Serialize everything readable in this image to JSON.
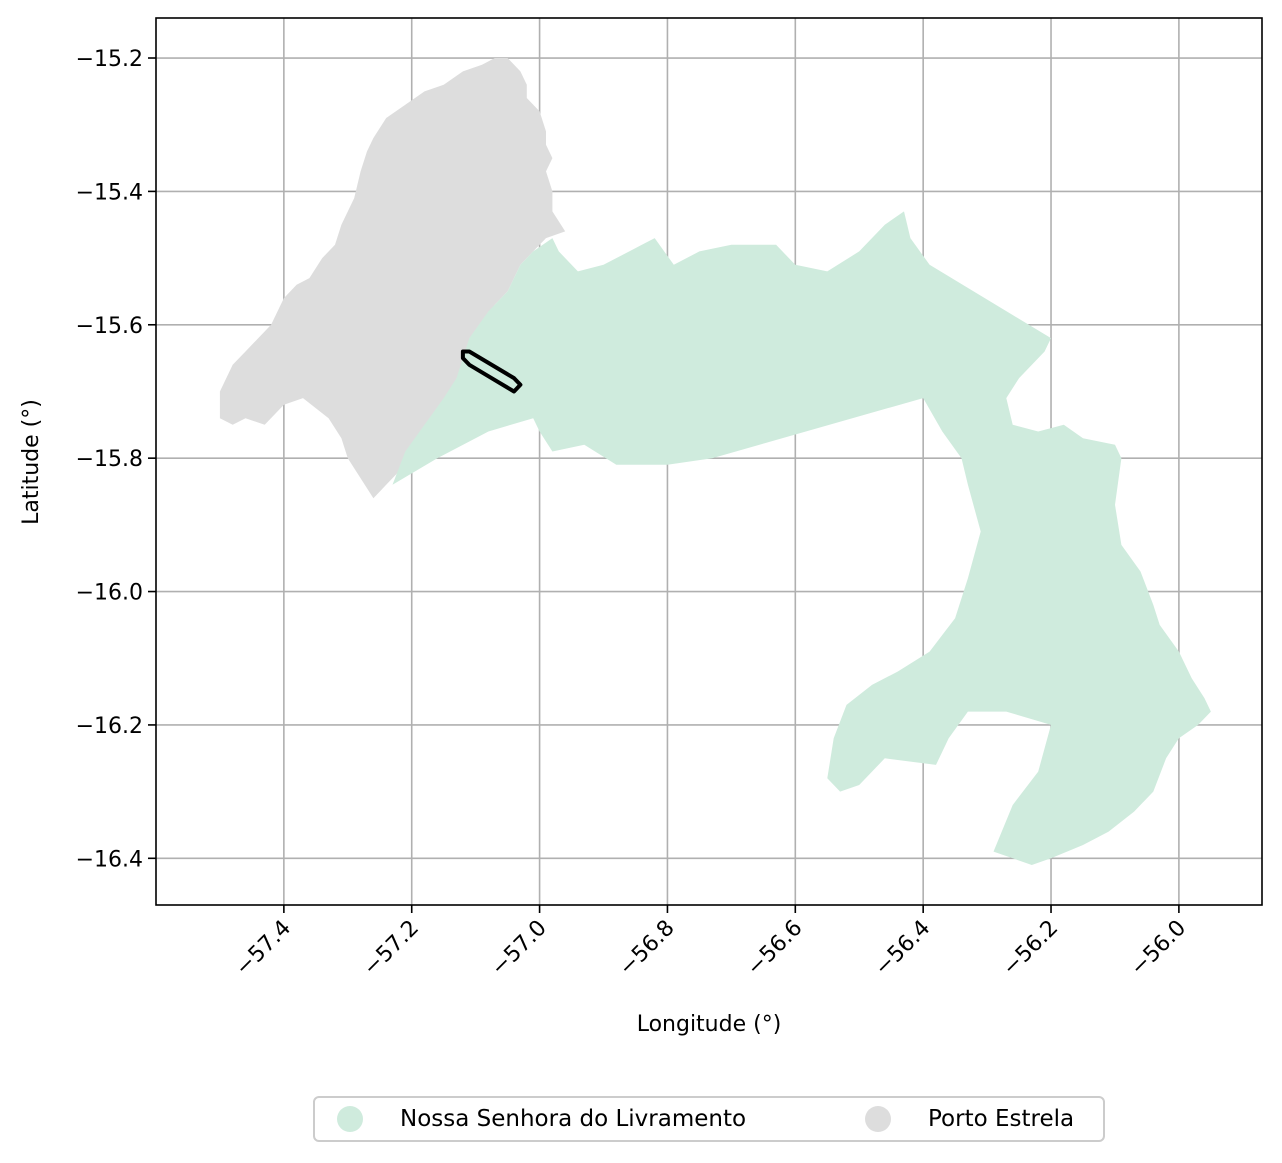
{
  "map": {
    "xlabel": "Longitude (°)",
    "ylabel": "Latitude (°)",
    "x_ticks": [
      -57.4,
      -57.2,
      -57.0,
      -56.8,
      -56.6,
      -56.4,
      -56.2,
      -56.0
    ],
    "x_tick_labels": [
      "−57.4",
      "−57.2",
      "−57.0",
      "−56.8",
      "−56.6",
      "−56.4",
      "−56.2",
      "−56.0"
    ],
    "y_ticks": [
      -15.2,
      -15.4,
      -15.6,
      -15.8,
      -16.0,
      -16.2,
      -16.4
    ],
    "y_tick_labels": [
      "−15.2",
      "−15.4",
      "−15.6",
      "−15.8",
      "−16.0",
      "−16.2",
      "−16.4"
    ],
    "xlim": [
      -57.6,
      -55.87
    ],
    "ylim": [
      -16.47,
      -15.14
    ],
    "grid": true,
    "legend_placement": "bottom-center",
    "colors": {
      "nossa_senhora": "#cfebdd",
      "porto_estrela": "#dddddd",
      "outline": "#000000",
      "grid": "#b0b0b0"
    },
    "regions": [
      {
        "name": "Porto Estrela",
        "color": "#dddddd",
        "coords": [
          [
            -57.05,
            -15.2
          ],
          [
            -57.03,
            -15.22
          ],
          [
            -57.02,
            -15.24
          ],
          [
            -57.02,
            -15.26
          ],
          [
            -57.0,
            -15.28
          ],
          [
            -56.99,
            -15.31
          ],
          [
            -56.99,
            -15.33
          ],
          [
            -56.98,
            -15.35
          ],
          [
            -56.99,
            -15.37
          ],
          [
            -56.98,
            -15.4
          ],
          [
            -56.98,
            -15.43
          ],
          [
            -56.96,
            -15.46
          ],
          [
            -56.99,
            -15.47
          ],
          [
            -57.01,
            -15.49
          ],
          [
            -57.03,
            -15.51
          ],
          [
            -57.05,
            -15.55
          ],
          [
            -57.07,
            -15.57
          ],
          [
            -57.09,
            -15.6
          ],
          [
            -57.11,
            -15.63
          ],
          [
            -57.12,
            -15.66
          ],
          [
            -57.13,
            -15.69
          ],
          [
            -57.15,
            -15.72
          ],
          [
            -57.16,
            -15.75
          ],
          [
            -57.17,
            -15.79
          ],
          [
            -57.18,
            -15.81
          ],
          [
            -57.2,
            -15.8
          ],
          [
            -57.22,
            -15.82
          ],
          [
            -57.24,
            -15.84
          ],
          [
            -57.26,
            -15.86
          ],
          [
            -57.28,
            -15.83
          ],
          [
            -57.3,
            -15.8
          ],
          [
            -57.31,
            -15.77
          ],
          [
            -57.33,
            -15.74
          ],
          [
            -57.37,
            -15.71
          ],
          [
            -57.4,
            -15.72
          ],
          [
            -57.43,
            -15.75
          ],
          [
            -57.46,
            -15.74
          ],
          [
            -57.48,
            -15.75
          ],
          [
            -57.5,
            -15.74
          ],
          [
            -57.5,
            -15.7
          ],
          [
            -57.48,
            -15.66
          ],
          [
            -57.46,
            -15.64
          ],
          [
            -57.44,
            -15.62
          ],
          [
            -57.42,
            -15.6
          ],
          [
            -57.4,
            -15.56
          ],
          [
            -57.38,
            -15.54
          ],
          [
            -57.36,
            -15.53
          ],
          [
            -57.34,
            -15.5
          ],
          [
            -57.32,
            -15.48
          ],
          [
            -57.31,
            -15.45
          ],
          [
            -57.29,
            -15.41
          ],
          [
            -57.28,
            -15.37
          ],
          [
            -57.27,
            -15.34
          ],
          [
            -57.26,
            -15.32
          ],
          [
            -57.24,
            -15.29
          ],
          [
            -57.21,
            -15.27
          ],
          [
            -57.18,
            -15.25
          ],
          [
            -57.15,
            -15.24
          ],
          [
            -57.12,
            -15.22
          ],
          [
            -57.09,
            -15.21
          ],
          [
            -57.07,
            -15.2
          ],
          [
            -57.05,
            -15.2
          ]
        ]
      },
      {
        "name": "Nossa Senhora do Livramento",
        "color": "#cfebdd",
        "coords": [
          [
            -56.98,
            -15.47
          ],
          [
            -56.97,
            -15.49
          ],
          [
            -56.94,
            -15.52
          ],
          [
            -56.9,
            -15.51
          ],
          [
            -56.84,
            -15.48
          ],
          [
            -56.82,
            -15.47
          ],
          [
            -56.79,
            -15.51
          ],
          [
            -56.75,
            -15.49
          ],
          [
            -56.7,
            -15.48
          ],
          [
            -56.63,
            -15.48
          ],
          [
            -56.6,
            -15.51
          ],
          [
            -56.55,
            -15.52
          ],
          [
            -56.5,
            -15.49
          ],
          [
            -56.46,
            -15.45
          ],
          [
            -56.43,
            -15.43
          ],
          [
            -56.42,
            -15.47
          ],
          [
            -56.39,
            -15.51
          ],
          [
            -56.2,
            -15.62
          ],
          [
            -56.21,
            -15.64
          ],
          [
            -56.25,
            -15.68
          ],
          [
            -56.27,
            -15.71
          ],
          [
            -56.26,
            -15.75
          ],
          [
            -56.22,
            -15.76
          ],
          [
            -56.18,
            -15.75
          ],
          [
            -56.15,
            -15.77
          ],
          [
            -56.1,
            -15.78
          ],
          [
            -56.09,
            -15.8
          ],
          [
            -56.1,
            -15.87
          ],
          [
            -56.09,
            -15.93
          ],
          [
            -56.06,
            -15.97
          ],
          [
            -56.04,
            -16.02
          ],
          [
            -56.03,
            -16.05
          ],
          [
            -56.0,
            -16.09
          ],
          [
            -55.98,
            -16.13
          ],
          [
            -55.96,
            -16.16
          ],
          [
            -55.95,
            -16.18
          ],
          [
            -55.97,
            -16.2
          ],
          [
            -56.0,
            -16.22
          ],
          [
            -56.02,
            -16.25
          ],
          [
            -56.04,
            -16.3
          ],
          [
            -56.07,
            -16.33
          ],
          [
            -56.11,
            -16.36
          ],
          [
            -56.15,
            -16.38
          ],
          [
            -56.2,
            -16.4
          ],
          [
            -56.23,
            -16.41
          ],
          [
            -56.26,
            -16.4
          ],
          [
            -56.29,
            -16.39
          ],
          [
            -56.26,
            -16.32
          ],
          [
            -56.22,
            -16.27
          ],
          [
            -56.2,
            -16.2
          ],
          [
            -56.27,
            -16.18
          ],
          [
            -56.33,
            -16.18
          ],
          [
            -56.36,
            -16.22
          ],
          [
            -56.38,
            -16.26
          ],
          [
            -56.46,
            -16.25
          ],
          [
            -56.5,
            -16.29
          ],
          [
            -56.53,
            -16.3
          ],
          [
            -56.55,
            -16.28
          ],
          [
            -56.54,
            -16.22
          ],
          [
            -56.52,
            -16.17
          ],
          [
            -56.48,
            -16.14
          ],
          [
            -56.44,
            -16.12
          ],
          [
            -56.39,
            -16.09
          ],
          [
            -56.35,
            -16.04
          ],
          [
            -56.33,
            -15.98
          ],
          [
            -56.31,
            -15.91
          ],
          [
            -56.33,
            -15.84
          ],
          [
            -56.34,
            -15.8
          ],
          [
            -56.37,
            -15.76
          ],
          [
            -56.4,
            -15.71
          ],
          [
            -56.73,
            -15.8
          ],
          [
            -56.8,
            -15.81
          ],
          [
            -56.88,
            -15.81
          ],
          [
            -56.93,
            -15.78
          ],
          [
            -56.98,
            -15.79
          ],
          [
            -57.0,
            -15.76
          ],
          [
            -57.01,
            -15.74
          ],
          [
            -57.08,
            -15.76
          ],
          [
            -57.16,
            -15.8
          ],
          [
            -57.23,
            -15.84
          ],
          [
            -57.21,
            -15.79
          ],
          [
            -57.18,
            -15.75
          ],
          [
            -57.15,
            -15.71
          ],
          [
            -57.13,
            -15.68
          ],
          [
            -57.12,
            -15.65
          ],
          [
            -57.11,
            -15.62
          ],
          [
            -57.08,
            -15.58
          ],
          [
            -57.05,
            -15.55
          ],
          [
            -57.03,
            -15.51
          ],
          [
            -57.01,
            -15.49
          ],
          [
            -56.98,
            -15.47
          ]
        ]
      }
    ],
    "outline_polygon": [
      [
        -57.12,
        -15.64
      ],
      [
        -57.11,
        -15.64
      ],
      [
        -57.04,
        -15.68
      ],
      [
        -57.03,
        -15.69
      ],
      [
        -57.04,
        -15.7
      ],
      [
        -57.11,
        -15.66
      ],
      [
        -57.12,
        -15.65
      ],
      [
        -57.12,
        -15.64
      ]
    ]
  },
  "legend": {
    "items": [
      {
        "label": "Nossa Senhora do Livramento",
        "color": "#cfebdd"
      },
      {
        "label": "Porto Estrela",
        "color": "#dddddd"
      }
    ]
  }
}
